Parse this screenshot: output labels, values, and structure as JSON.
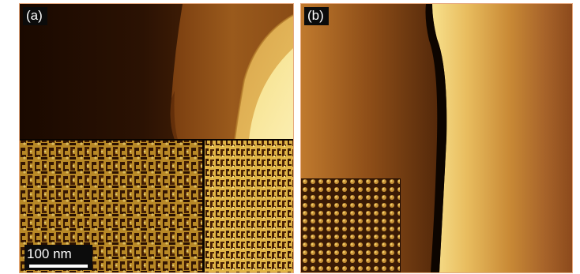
{
  "figure": {
    "panels": [
      {
        "label": "(a)",
        "scale_bar": "100 nm"
      },
      {
        "label": "(b)"
      }
    ],
    "colors": {
      "frame": "#e6a77c",
      "dark": "#160800",
      "mid": "#9a5a1c",
      "bright": "#f3d477"
    }
  }
}
